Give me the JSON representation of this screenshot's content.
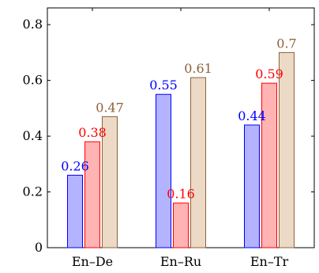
{
  "chart_data": {
    "type": "bar",
    "categories": [
      "En–De",
      "En–Ru",
      "En–Tr"
    ],
    "series": [
      {
        "values": [
          0.26,
          0.55,
          0.44
        ],
        "labels": [
          "0.26",
          "0.55",
          "0.44"
        ],
        "fill": "#b3b3ff",
        "stroke": "#0000ff",
        "label_color": "#0000ff"
      },
      {
        "values": [
          0.38,
          0.16,
          0.59
        ],
        "labels": [
          "0.38",
          "0.16",
          "0.59"
        ],
        "fill": "#ffb3b3",
        "stroke": "#ff0000",
        "label_color": "#ff0000"
      },
      {
        "values": [
          0.47,
          0.61,
          0.7
        ],
        "labels": [
          "0.47",
          "0.61",
          "0.7"
        ],
        "fill": "#ecd9c6",
        "stroke": "#8c6239",
        "label_color": "#8c6239"
      }
    ],
    "ylim": [
      0,
      0.86
    ],
    "yticks": [
      0,
      0.2,
      0.4,
      0.6,
      0.8
    ],
    "ytick_labels": [
      "0",
      "0.2",
      "0.4",
      "0.6",
      "0.8"
    ],
    "grid": false,
    "legend": "none",
    "title": "",
    "xlabel": "",
    "ylabel": ""
  }
}
